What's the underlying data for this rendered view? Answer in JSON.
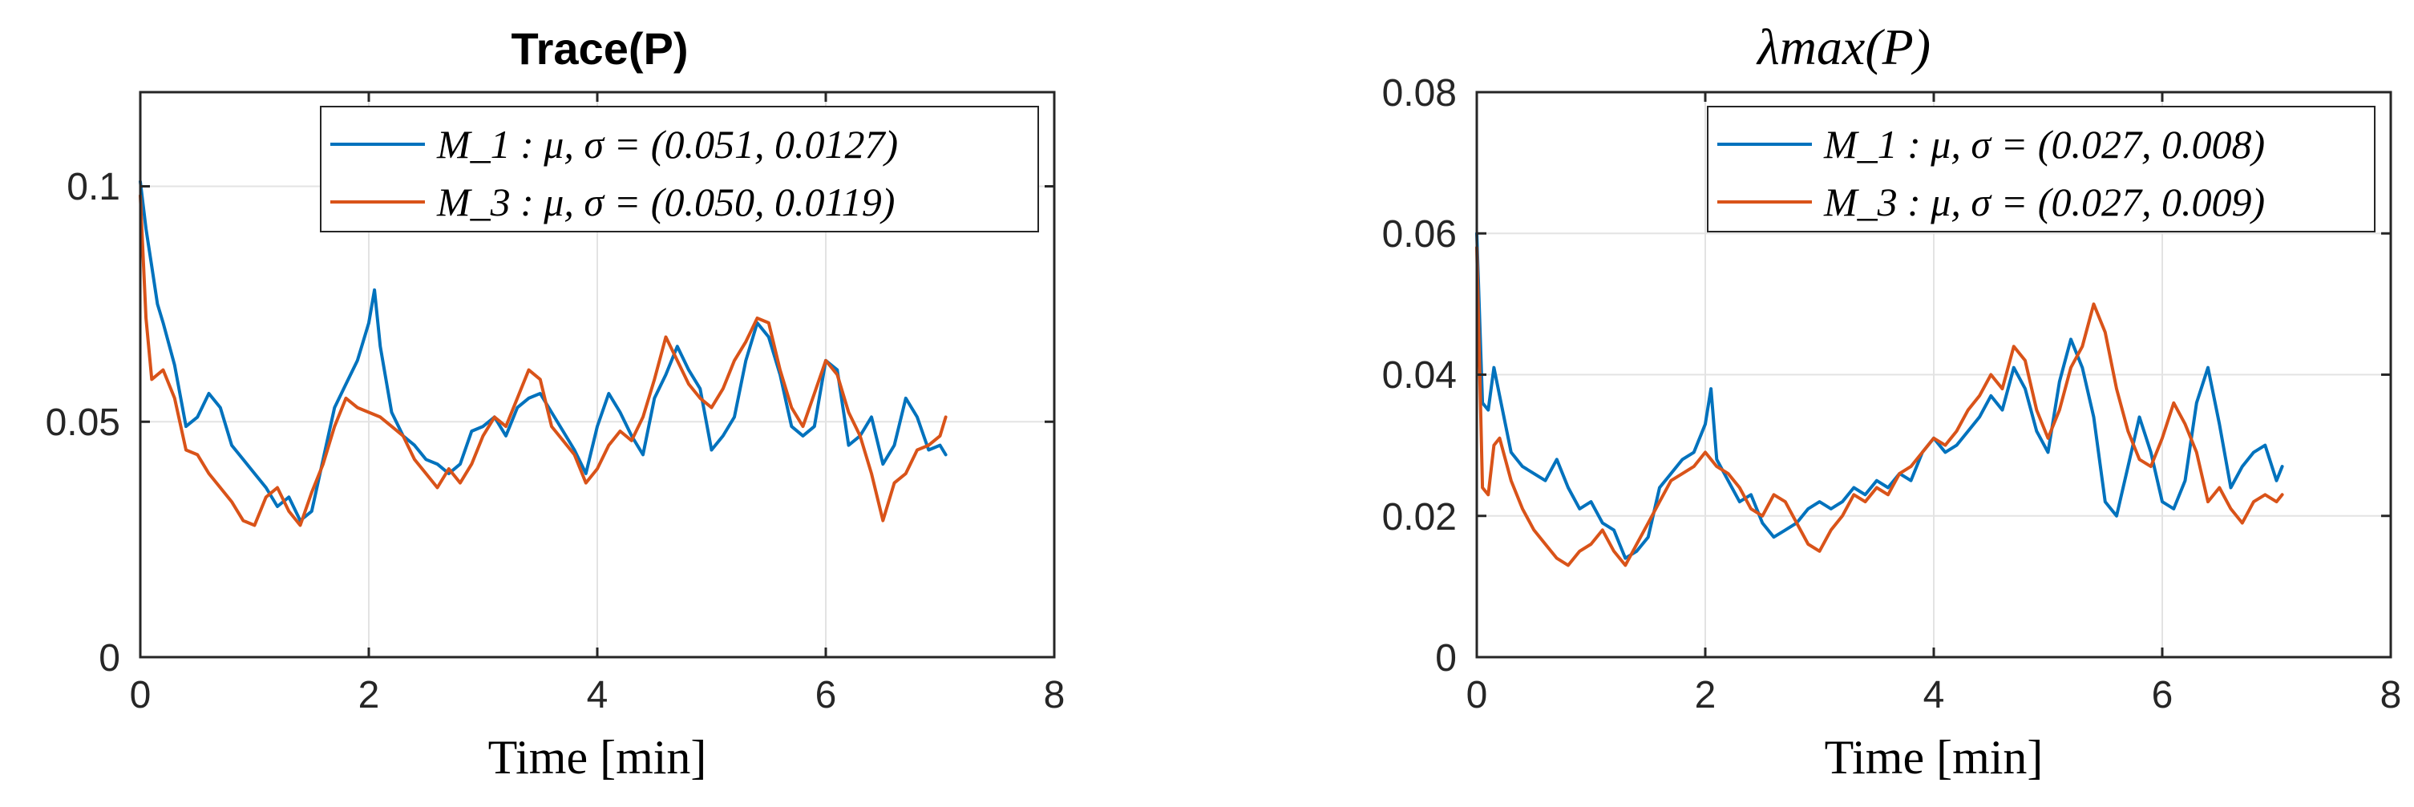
{
  "colors": {
    "m1": "#0072BD",
    "m3": "#D95319"
  },
  "chart_data": [
    {
      "type": "line",
      "title": "Trace(P)",
      "xlabel": "Time [min]",
      "ylabel": "",
      "xlim": [
        0,
        8
      ],
      "ylim": [
        0,
        0.12
      ],
      "xticks": [
        "0",
        "2",
        "4",
        "6",
        "8"
      ],
      "yticks": [
        "0",
        "0.05",
        "0.1"
      ],
      "grid": true,
      "legend_position": "top-right",
      "series": [
        {
          "name": "M_1 : μ, σ = (0.051, 0.0127)",
          "x": [
            0,
            0.05,
            0.1,
            0.15,
            0.2,
            0.3,
            0.4,
            0.5,
            0.6,
            0.7,
            0.8,
            0.9,
            1.0,
            1.1,
            1.2,
            1.3,
            1.4,
            1.5,
            1.6,
            1.7,
            1.8,
            1.9,
            2.0,
            2.05,
            2.1,
            2.2,
            2.3,
            2.4,
            2.5,
            2.6,
            2.7,
            2.8,
            2.9,
            3.0,
            3.1,
            3.2,
            3.3,
            3.4,
            3.5,
            3.6,
            3.7,
            3.8,
            3.9,
            4.0,
            4.1,
            4.2,
            4.3,
            4.4,
            4.5,
            4.6,
            4.7,
            4.8,
            4.9,
            5.0,
            5.1,
            5.2,
            5.3,
            5.4,
            5.5,
            5.6,
            5.7,
            5.8,
            5.9,
            6.0,
            6.1,
            6.2,
            6.3,
            6.4,
            6.5,
            6.6,
            6.7,
            6.8,
            6.9,
            7.0,
            7.05
          ],
          "y": [
            0.101,
            0.091,
            0.083,
            0.075,
            0.071,
            0.062,
            0.049,
            0.051,
            0.056,
            0.053,
            0.045,
            0.042,
            0.039,
            0.036,
            0.032,
            0.034,
            0.029,
            0.031,
            0.042,
            0.053,
            0.058,
            0.063,
            0.071,
            0.078,
            0.066,
            0.052,
            0.047,
            0.045,
            0.042,
            0.041,
            0.039,
            0.041,
            0.048,
            0.049,
            0.051,
            0.047,
            0.053,
            0.055,
            0.056,
            0.052,
            0.048,
            0.044,
            0.039,
            0.049,
            0.056,
            0.052,
            0.047,
            0.043,
            0.055,
            0.06,
            0.066,
            0.061,
            0.057,
            0.044,
            0.047,
            0.051,
            0.063,
            0.071,
            0.068,
            0.06,
            0.049,
            0.047,
            0.049,
            0.063,
            0.061,
            0.045,
            0.047,
            0.051,
            0.041,
            0.045,
            0.055,
            0.051,
            0.044,
            0.045,
            0.043
          ]
        },
        {
          "name": "M_3 : μ, σ = (0.050, 0.0119)",
          "x": [
            0,
            0.05,
            0.1,
            0.2,
            0.3,
            0.4,
            0.5,
            0.6,
            0.7,
            0.8,
            0.9,
            1.0,
            1.1,
            1.2,
            1.3,
            1.4,
            1.5,
            1.6,
            1.7,
            1.8,
            1.9,
            2.0,
            2.1,
            2.2,
            2.3,
            2.4,
            2.5,
            2.6,
            2.7,
            2.8,
            2.9,
            3.0,
            3.1,
            3.2,
            3.3,
            3.4,
            3.5,
            3.6,
            3.7,
            3.8,
            3.9,
            4.0,
            4.1,
            4.2,
            4.3,
            4.4,
            4.5,
            4.6,
            4.7,
            4.8,
            4.9,
            5.0,
            5.1,
            5.2,
            5.3,
            5.4,
            5.5,
            5.6,
            5.7,
            5.8,
            5.9,
            6.0,
            6.1,
            6.2,
            6.3,
            6.4,
            6.5,
            6.6,
            6.7,
            6.8,
            6.9,
            7.0,
            7.05
          ],
          "y": [
            0.098,
            0.072,
            0.059,
            0.061,
            0.055,
            0.044,
            0.043,
            0.039,
            0.036,
            0.033,
            0.029,
            0.028,
            0.034,
            0.036,
            0.031,
            0.028,
            0.035,
            0.041,
            0.049,
            0.055,
            0.053,
            0.052,
            0.051,
            0.049,
            0.047,
            0.042,
            0.039,
            0.036,
            0.04,
            0.037,
            0.041,
            0.047,
            0.051,
            0.049,
            0.055,
            0.061,
            0.059,
            0.049,
            0.046,
            0.043,
            0.037,
            0.04,
            0.045,
            0.048,
            0.046,
            0.051,
            0.059,
            0.068,
            0.063,
            0.058,
            0.055,
            0.053,
            0.057,
            0.063,
            0.067,
            0.072,
            0.071,
            0.061,
            0.053,
            0.049,
            0.056,
            0.063,
            0.06,
            0.052,
            0.047,
            0.039,
            0.029,
            0.037,
            0.039,
            0.044,
            0.045,
            0.047,
            0.051
          ]
        }
      ]
    },
    {
      "type": "line",
      "title": "λmax(P)",
      "xlabel": "Time [min]",
      "ylabel": "",
      "xlim": [
        0,
        8
      ],
      "ylim": [
        0,
        0.08
      ],
      "xticks": [
        "0",
        "2",
        "4",
        "6",
        "8"
      ],
      "yticks": [
        "0",
        "0.02",
        "0.04",
        "0.06",
        "0.08"
      ],
      "grid": true,
      "legend_position": "top-right",
      "series": [
        {
          "name": "M_1 : μ, σ = (0.027, 0.008)",
          "x": [
            0,
            0.05,
            0.1,
            0.15,
            0.2,
            0.3,
            0.4,
            0.5,
            0.6,
            0.7,
            0.8,
            0.9,
            1.0,
            1.1,
            1.2,
            1.3,
            1.4,
            1.5,
            1.6,
            1.7,
            1.8,
            1.9,
            2.0,
            2.05,
            2.1,
            2.2,
            2.3,
            2.4,
            2.5,
            2.6,
            2.7,
            2.8,
            2.9,
            3.0,
            3.1,
            3.2,
            3.3,
            3.4,
            3.5,
            3.6,
            3.7,
            3.8,
            3.9,
            4.0,
            4.1,
            4.2,
            4.3,
            4.4,
            4.5,
            4.6,
            4.7,
            4.8,
            4.9,
            5.0,
            5.1,
            5.2,
            5.3,
            5.4,
            5.5,
            5.6,
            5.7,
            5.8,
            5.9,
            6.0,
            6.1,
            6.2,
            6.3,
            6.4,
            6.5,
            6.6,
            6.7,
            6.8,
            6.9,
            7.0,
            7.05
          ],
          "y": [
            0.06,
            0.036,
            0.035,
            0.041,
            0.037,
            0.029,
            0.027,
            0.026,
            0.025,
            0.028,
            0.024,
            0.021,
            0.022,
            0.019,
            0.018,
            0.014,
            0.015,
            0.017,
            0.024,
            0.026,
            0.028,
            0.029,
            0.033,
            0.038,
            0.028,
            0.025,
            0.022,
            0.023,
            0.019,
            0.017,
            0.018,
            0.019,
            0.021,
            0.022,
            0.021,
            0.022,
            0.024,
            0.023,
            0.025,
            0.024,
            0.026,
            0.025,
            0.029,
            0.031,
            0.029,
            0.03,
            0.032,
            0.034,
            0.037,
            0.035,
            0.041,
            0.038,
            0.032,
            0.029,
            0.039,
            0.045,
            0.041,
            0.034,
            0.022,
            0.02,
            0.027,
            0.034,
            0.029,
            0.022,
            0.021,
            0.025,
            0.036,
            0.041,
            0.033,
            0.024,
            0.027,
            0.029,
            0.03,
            0.025,
            0.027
          ]
        },
        {
          "name": "M_3 : μ, σ = (0.027, 0.009)",
          "x": [
            0,
            0.05,
            0.1,
            0.15,
            0.2,
            0.3,
            0.4,
            0.5,
            0.6,
            0.7,
            0.8,
            0.9,
            1.0,
            1.1,
            1.2,
            1.3,
            1.4,
            1.5,
            1.6,
            1.7,
            1.8,
            1.9,
            2.0,
            2.1,
            2.2,
            2.3,
            2.4,
            2.5,
            2.6,
            2.7,
            2.8,
            2.9,
            3.0,
            3.1,
            3.2,
            3.3,
            3.4,
            3.5,
            3.6,
            3.7,
            3.8,
            3.9,
            4.0,
            4.1,
            4.2,
            4.3,
            4.4,
            4.5,
            4.6,
            4.7,
            4.8,
            4.9,
            5.0,
            5.1,
            5.2,
            5.3,
            5.4,
            5.5,
            5.6,
            5.7,
            5.8,
            5.9,
            6.0,
            6.1,
            6.2,
            6.3,
            6.4,
            6.5,
            6.6,
            6.7,
            6.8,
            6.9,
            7.0,
            7.05
          ],
          "y": [
            0.058,
            0.024,
            0.023,
            0.03,
            0.031,
            0.025,
            0.021,
            0.018,
            0.016,
            0.014,
            0.013,
            0.015,
            0.016,
            0.018,
            0.015,
            0.013,
            0.016,
            0.019,
            0.022,
            0.025,
            0.026,
            0.027,
            0.029,
            0.027,
            0.026,
            0.024,
            0.021,
            0.02,
            0.023,
            0.022,
            0.019,
            0.016,
            0.015,
            0.018,
            0.02,
            0.023,
            0.022,
            0.024,
            0.023,
            0.026,
            0.027,
            0.029,
            0.031,
            0.03,
            0.032,
            0.035,
            0.037,
            0.04,
            0.038,
            0.044,
            0.042,
            0.035,
            0.031,
            0.035,
            0.041,
            0.044,
            0.05,
            0.046,
            0.038,
            0.032,
            0.028,
            0.027,
            0.031,
            0.036,
            0.033,
            0.029,
            0.022,
            0.024,
            0.021,
            0.019,
            0.022,
            0.023,
            0.022,
            0.023
          ]
        }
      ]
    }
  ]
}
